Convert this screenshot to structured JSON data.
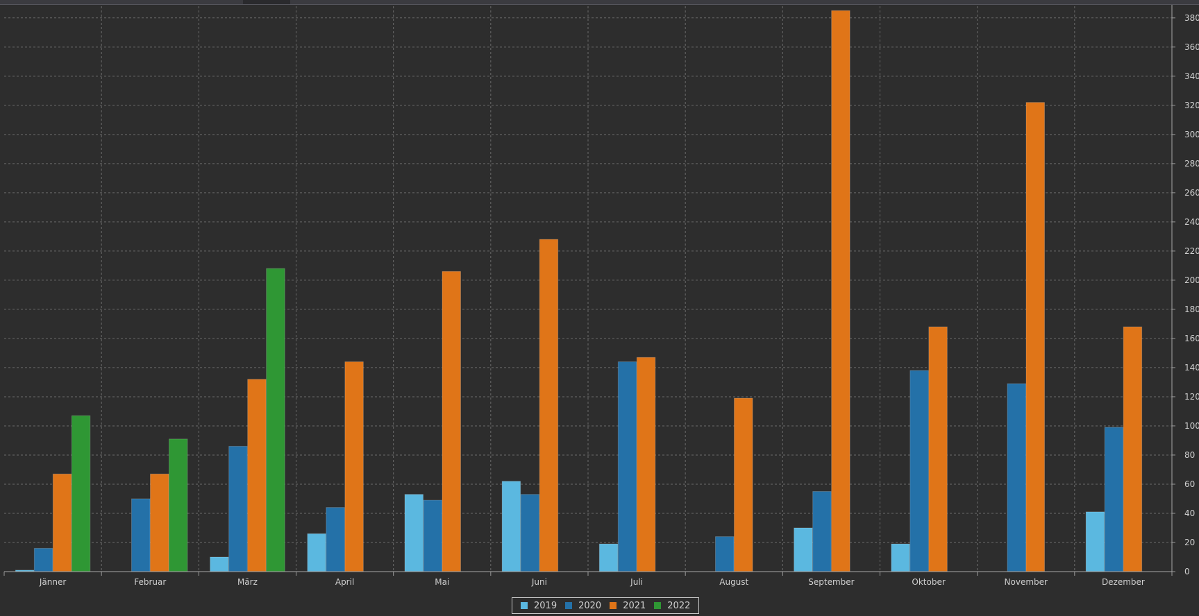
{
  "chart_data": {
    "type": "bar",
    "categories": [
      "Jänner",
      "Februar",
      "März",
      "April",
      "Mai",
      "Juni",
      "Juli",
      "August",
      "September",
      "Oktober",
      "November",
      "Dezember"
    ],
    "series": [
      {
        "name": "2019",
        "color": "#5bb8e0",
        "values": [
          1,
          0,
          10,
          26,
          53,
          62,
          19,
          0,
          30,
          19,
          0,
          41
        ]
      },
      {
        "name": "2020",
        "color": "#2471a8",
        "values": [
          16,
          50,
          86,
          44,
          49,
          53,
          144,
          24,
          55,
          138,
          129,
          99
        ]
      },
      {
        "name": "2021",
        "color": "#e07518",
        "values": [
          67,
          67,
          132,
          144,
          206,
          228,
          147,
          119,
          385,
          168,
          322,
          168
        ]
      },
      {
        "name": "2022",
        "color": "#2f9734",
        "values": [
          107,
          91,
          208,
          0,
          0,
          0,
          0,
          0,
          0,
          0,
          0,
          0
        ]
      }
    ],
    "yticks": [
      0,
      20,
      40,
      60,
      80,
      100,
      120,
      140,
      160,
      180,
      200,
      220,
      240,
      260,
      280,
      300,
      320,
      340,
      360,
      380
    ],
    "ylim": [
      0,
      388
    ],
    "y_axis_position": "right",
    "grid": true,
    "legend_position": "bottom-center",
    "title": "",
    "xlabel": "",
    "ylabel": ""
  }
}
